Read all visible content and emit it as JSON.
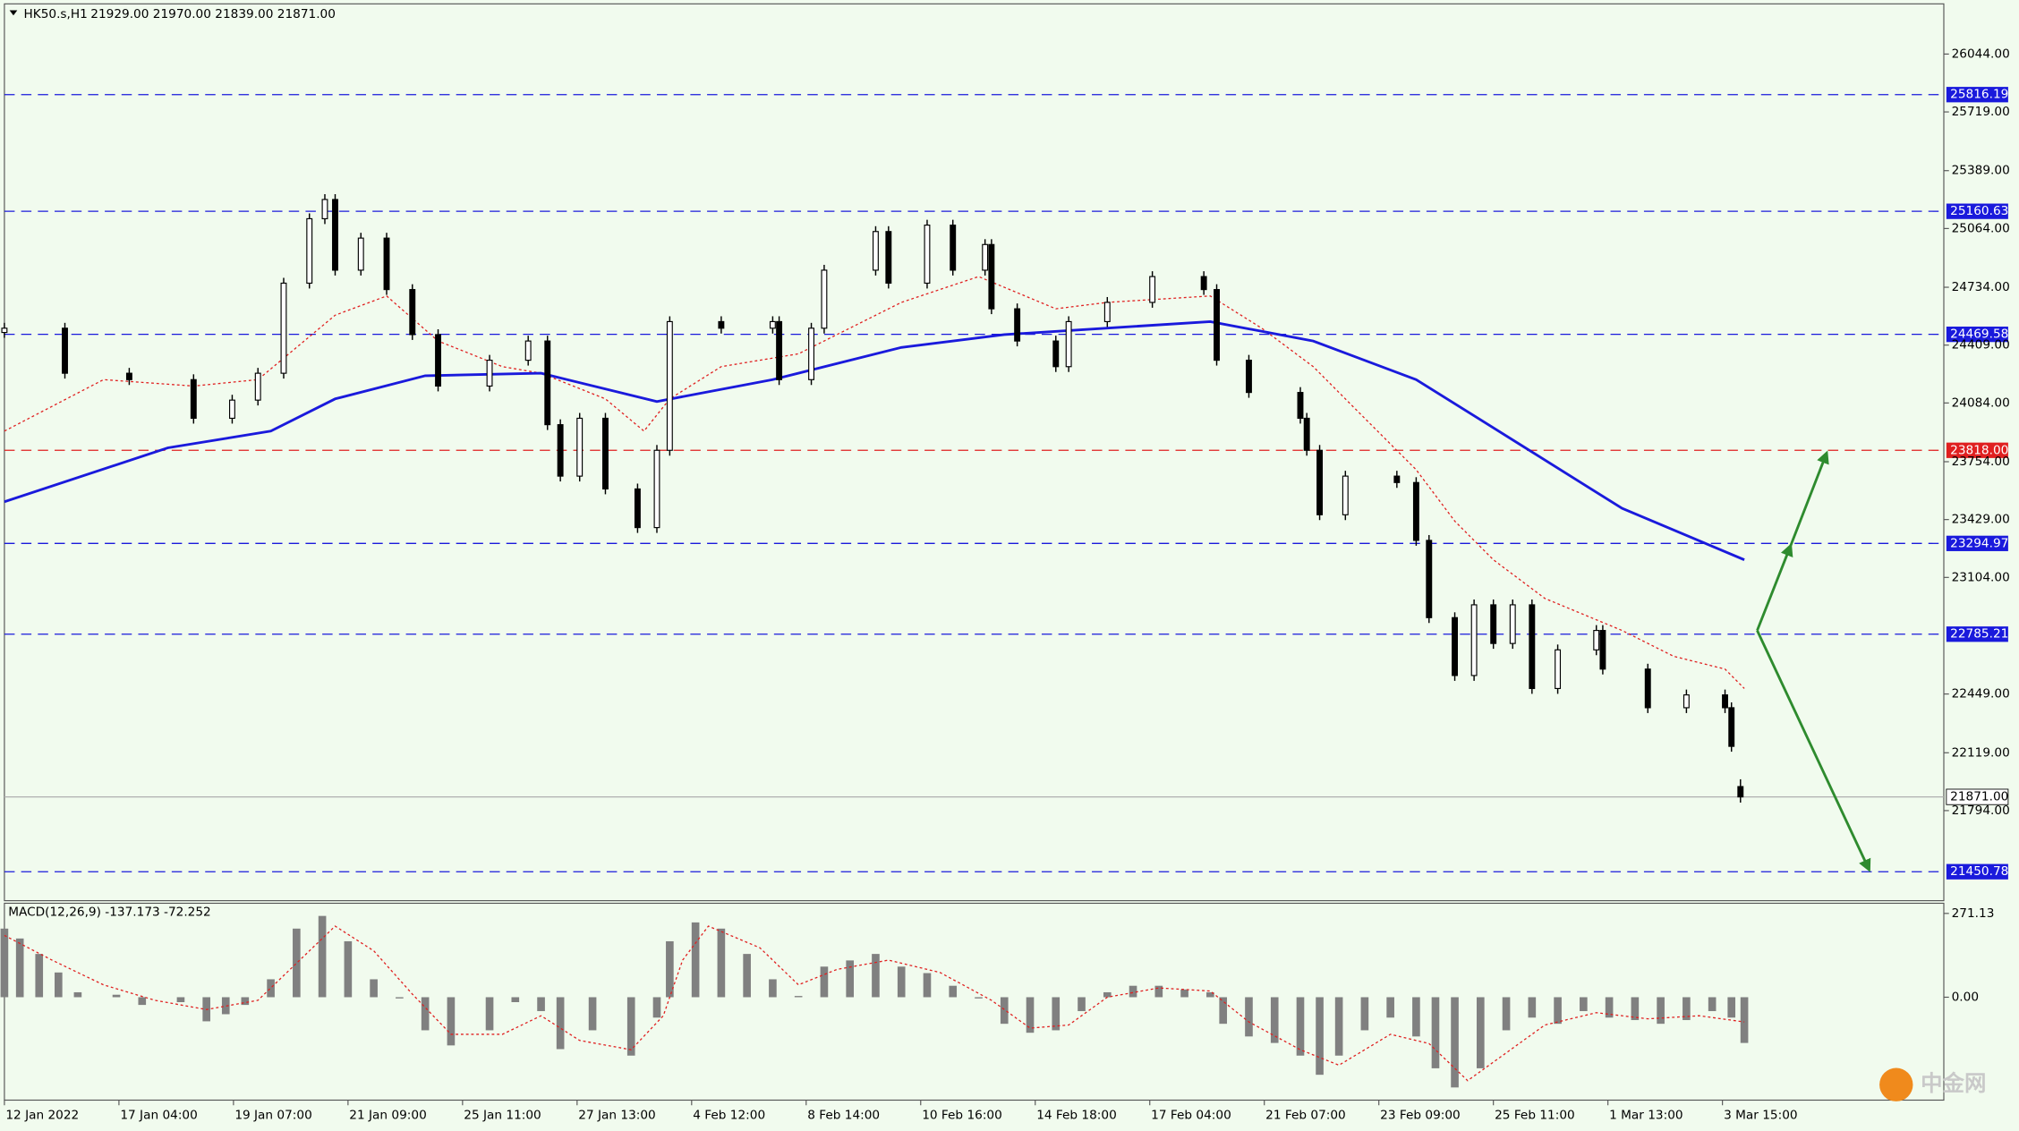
{
  "chart_data": [
    {
      "type": "candlestick",
      "title": "HK50.s,H1",
      "subtitle": "21929.00 21970.00 21839.00 21871.00",
      "xlim": [
        3,
        1510
      ],
      "ylim": [
        21288,
        26326
      ],
      "x": [
        3,
        50,
        100,
        150,
        180,
        200,
        220,
        240,
        252,
        260,
        280,
        300,
        320,
        340,
        380,
        410,
        425,
        435,
        450,
        470,
        495,
        510,
        520,
        560,
        600,
        605,
        630,
        640,
        680,
        690,
        720,
        740,
        765,
        770,
        790,
        820,
        830,
        860,
        895,
        935,
        945,
        970,
        1010,
        1015,
        1025,
        1045,
        1085,
        1100,
        1110,
        1130,
        1145,
        1160,
        1175,
        1190,
        1210,
        1240,
        1245,
        1280,
        1310,
        1340,
        1345,
        1352
      ],
      "open": [
        24480,
        24504,
        24251,
        24215,
        23998,
        24100,
        24251,
        24757,
        25119,
        25227,
        24830,
        25010,
        24721,
        24468,
        24179,
        24324,
        24432,
        23962,
        23673,
        23998,
        23601,
        23384,
        23818,
        24541,
        24504,
        24541,
        24215,
        24504,
        24830,
        25047,
        24757,
        25083,
        24830,
        24974,
        24613,
        24432,
        24288,
        24541,
        24649,
        24794,
        24721,
        24324,
        24143,
        23998,
        23818,
        23456,
        23673,
        23637,
        23312,
        22878,
        22553,
        22950,
        22733,
        22950,
        22480,
        22697,
        22806,
        22589,
        22372,
        22444,
        22372,
        21929
      ],
      "high": [
        24534,
        24534,
        24281,
        24245,
        24130,
        24281,
        24787,
        25149,
        25257,
        25257,
        25040,
        25040,
        24751,
        24498,
        24354,
        24462,
        24462,
        23992,
        24028,
        24028,
        23631,
        23848,
        24571,
        24571,
        24571,
        24571,
        24534,
        24860,
        25077,
        25077,
        25113,
        25113,
        25004,
        25004,
        24643,
        24462,
        24571,
        24679,
        24824,
        24824,
        24751,
        24354,
        24173,
        24028,
        23848,
        23703,
        23703,
        23667,
        23342,
        22908,
        22980,
        22980,
        22980,
        22980,
        22727,
        22836,
        22836,
        22619,
        22474,
        22474,
        22402,
        21970
      ],
      "low": [
        24450,
        24221,
        24185,
        23968,
        23968,
        24070,
        24221,
        24727,
        25089,
        24800,
        24800,
        24691,
        24438,
        24149,
        24149,
        24294,
        23932,
        23643,
        23643,
        23571,
        23354,
        23354,
        23788,
        24474,
        24474,
        24185,
        24185,
        24474,
        24800,
        24727,
        24727,
        24800,
        24800,
        24583,
        24402,
        24258,
        24258,
        24511,
        24619,
        24691,
        24294,
        24113,
        23968,
        23788,
        23426,
        23426,
        23607,
        23282,
        22848,
        22523,
        22523,
        22703,
        22703,
        22450,
        22450,
        22667,
        22559,
        22342,
        22342,
        22342,
        22125,
        21839
      ],
      "close": [
        24504,
        24251,
        24215,
        23998,
        24100,
        24251,
        24757,
        25119,
        25227,
        24830,
        25010,
        24721,
        24468,
        24179,
        24324,
        24432,
        23962,
        23673,
        23998,
        23601,
        23384,
        23818,
        24541,
        24504,
        24541,
        24215,
        24504,
        24830,
        25047,
        24757,
        25083,
        24830,
        24974,
        24613,
        24432,
        24288,
        24541,
        24649,
        24794,
        24721,
        24324,
        24143,
        23998,
        23818,
        23456,
        23673,
        23637,
        23312,
        22878,
        22553,
        22950,
        22733,
        22950,
        22480,
        22697,
        22806,
        22589,
        22372,
        22444,
        22372,
        22155,
        21871
      ],
      "overlays": [
        {
          "color": "#e02020",
          "style": "dotted",
          "x": [
            3,
            80,
            150,
            200,
            260,
            300,
            340,
            390,
            420,
            470,
            500,
            520,
            560,
            620,
            700,
            760,
            820,
            860,
            940,
            980,
            1020,
            1060,
            1100,
            1130,
            1160,
            1200,
            1260,
            1300,
            1340,
            1355
          ],
          "values": [
            23926,
            24215,
            24179,
            24215,
            24577,
            24685,
            24432,
            24288,
            24251,
            24107,
            23926,
            24107,
            24288,
            24360,
            24649,
            24794,
            24613,
            24649,
            24685,
            24504,
            24288,
            23998,
            23709,
            23420,
            23203,
            22986,
            22806,
            22661,
            22589,
            22480
          ]
        },
        {
          "color": "#1a1adc",
          "style": "solid",
          "x": [
            3,
            130,
            210,
            260,
            330,
            420,
            510,
            600,
            700,
            780,
            940,
            1020,
            1100,
            1180,
            1260,
            1355
          ],
          "values": [
            23529,
            23832,
            23926,
            24107,
            24237,
            24251,
            24092,
            24215,
            24396,
            24468,
            24541,
            24432,
            24215,
            23854,
            23492,
            23203
          ]
        }
      ],
      "levels": {
        "values": [
          25816.19,
          25160.63,
          24469.58,
          23818.0,
          23294.97,
          22785.21,
          21450.78
        ],
        "value_labels": [
          "25816.19",
          "25160.63",
          "24469.58",
          "23818.00",
          "23294.97",
          "22785.21",
          "21450.78"
        ],
        "colors": [
          "#1a1adc",
          "#1a1adc",
          "#1a1adc",
          "#e02020",
          "#1a1adc",
          "#1a1adc",
          "#1a1adc"
        ]
      },
      "last_price": {
        "value": 21871.0,
        "label": "21871.00"
      },
      "yticks": [
        {
          "value": 26044,
          "label": "26044.00"
        },
        {
          "value": 25719,
          "label": "25719.00"
        },
        {
          "value": 25389,
          "label": "25389.00"
        },
        {
          "value": 25064,
          "label": "25064.00"
        },
        {
          "value": 24734,
          "label": "24734.00"
        },
        {
          "value": 24409,
          "label": "24409.00"
        },
        {
          "value": 24084,
          "label": "24084.00"
        },
        {
          "value": 23754,
          "label": "23754.00"
        },
        {
          "value": 23429,
          "label": "23429.00"
        },
        {
          "value": 23104,
          "label": "23104.00"
        },
        {
          "value": 22449,
          "label": "22449.00"
        },
        {
          "value": 22119,
          "label": "22119.00"
        },
        {
          "value": 21794,
          "label": "21794.00"
        }
      ],
      "xticks": [
        {
          "value": 3,
          "label": "12 Jan 2022"
        },
        {
          "value": 92,
          "label": "17 Jan 04:00"
        },
        {
          "value": 181,
          "label": "19 Jan 07:00"
        },
        {
          "value": 270,
          "label": "21 Jan 09:00"
        },
        {
          "value": 359,
          "label": "25 Jan 11:00"
        },
        {
          "value": 448,
          "label": "27 Jan 13:00"
        },
        {
          "value": 537,
          "label": "4 Feb 12:00"
        },
        {
          "value": 626,
          "label": "8 Feb 14:00"
        },
        {
          "value": 715,
          "label": "10 Feb 16:00"
        },
        {
          "value": 804,
          "label": "14 Feb 18:00"
        },
        {
          "value": 893,
          "label": "17 Feb 04:00"
        },
        {
          "value": 982,
          "label": "21 Feb 07:00"
        },
        {
          "value": 1071,
          "label": "23 Feb 09:00"
        },
        {
          "value": 1160,
          "label": "25 Feb 11:00"
        },
        {
          "value": 1249,
          "label": "1 Mar 13:00"
        },
        {
          "value": 1338,
          "label": "3 Mar 15:00"
        }
      ]
    },
    {
      "type": "macd",
      "title": "MACD(12,26,9) -137.173 -72.252",
      "xlim": [
        3,
        1510
      ],
      "ylim": [
        -333,
        304
      ],
      "yticks": [
        {
          "value": 271.13,
          "label": "271.13"
        },
        {
          "value": 0,
          "label": "0.00"
        }
      ],
      "x": [
        3,
        15,
        30,
        45,
        60,
        90,
        110,
        140,
        160,
        175,
        190,
        210,
        230,
        250,
        270,
        290,
        310,
        330,
        350,
        380,
        400,
        420,
        435,
        460,
        490,
        510,
        520,
        540,
        560,
        580,
        600,
        620,
        640,
        660,
        680,
        700,
        720,
        740,
        760,
        780,
        800,
        820,
        840,
        860,
        880,
        900,
        920,
        940,
        950,
        970,
        990,
        1010,
        1025,
        1040,
        1060,
        1080,
        1100,
        1115,
        1130,
        1150,
        1170,
        1190,
        1210,
        1230,
        1250,
        1270,
        1290,
        1310,
        1330,
        1345,
        1355
      ],
      "values": [
        222,
        190,
        140,
        80,
        16,
        8,
        -25,
        -16,
        -78,
        -55,
        -25,
        58,
        222,
        263,
        181,
        58,
        -4,
        -107,
        -156,
        -107,
        -16,
        -45,
        -168,
        -107,
        -189,
        -66,
        181,
        242,
        222,
        140,
        58,
        4,
        99,
        119,
        140,
        99,
        78,
        37,
        -4,
        -86,
        -115,
        -107,
        -45,
        16,
        37,
        37,
        25,
        16,
        -86,
        -127,
        -148,
        -189,
        -251,
        -189,
        -107,
        -66,
        -127,
        -230,
        -292,
        -230,
        -107,
        -66,
        -86,
        -45,
        -66,
        -74,
        -86,
        -74,
        -45,
        -66,
        -148
      ],
      "color": "#808080",
      "signal": {
        "color": "#e02020",
        "x": [
          3,
          40,
          80,
          120,
          160,
          200,
          240,
          260,
          290,
          320,
          350,
          390,
          420,
          450,
          490,
          515,
          530,
          550,
          590,
          620,
          650,
          690,
          730,
          770,
          800,
          830,
          860,
          900,
          940,
          970,
          1010,
          1040,
          1080,
          1110,
          1140,
          1170,
          1200,
          1240,
          1280,
          1320,
          1355
        ],
        "values": [
          200,
          120,
          40,
          -10,
          -40,
          -10,
          150,
          230,
          150,
          10,
          -120,
          -120,
          -60,
          -140,
          -170,
          -60,
          120,
          230,
          160,
          40,
          90,
          120,
          80,
          -10,
          -100,
          -90,
          0,
          30,
          20,
          -80,
          -170,
          -220,
          -120,
          -150,
          -270,
          -180,
          -90,
          -50,
          -70,
          -60,
          -80
        ]
      }
    }
  ],
  "watermark": "中金网"
}
